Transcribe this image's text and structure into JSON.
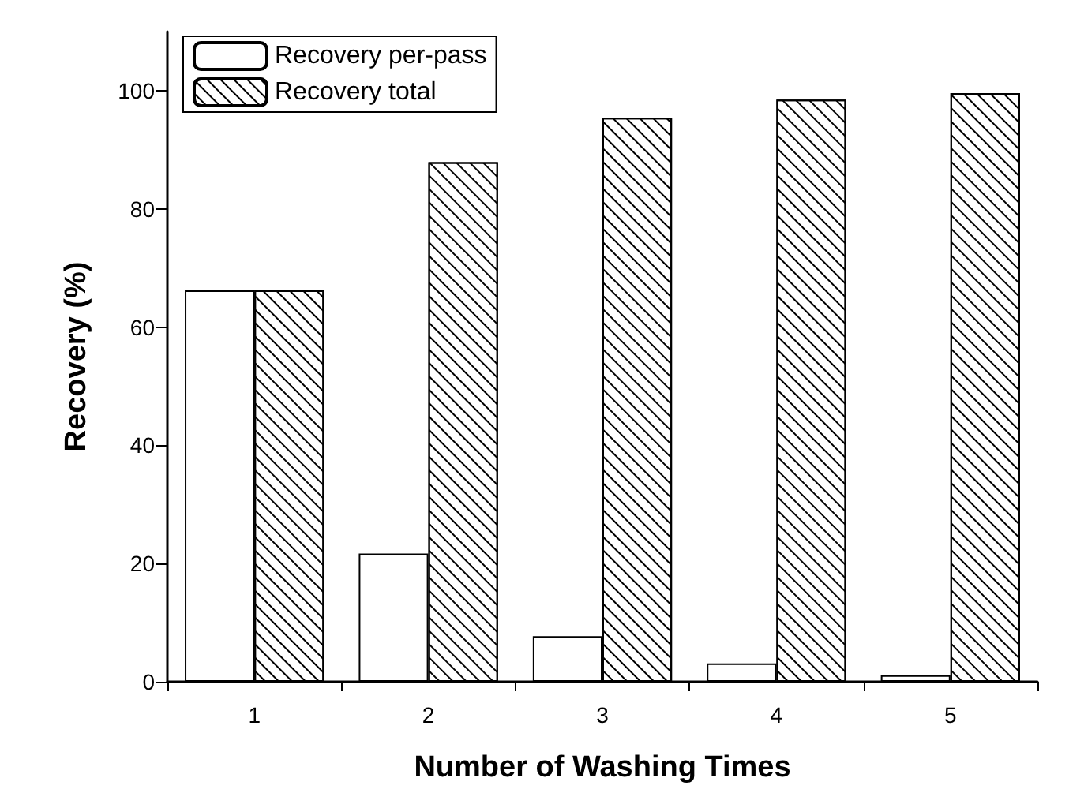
{
  "chart_data": {
    "type": "bar",
    "xlabel": "Number of Washing Times",
    "ylabel": "Recovery (%)",
    "categories": [
      "1",
      "2",
      "3",
      "4",
      "5"
    ],
    "series": [
      {
        "name": "Recovery per-pass",
        "color": "#ffffff",
        "values": [
          66.2,
          21.7,
          7.7,
          3.1,
          1.1
        ]
      },
      {
        "name": "Recovery total",
        "color": "#ffffff",
        "values": [
          66.2,
          87.9,
          95.4,
          98.5,
          99.6
        ]
      }
    ],
    "ylim": [
      0,
      110
    ],
    "yticks": [
      0,
      20,
      40,
      60,
      80,
      100
    ],
    "grid": false,
    "legend": "top left"
  }
}
